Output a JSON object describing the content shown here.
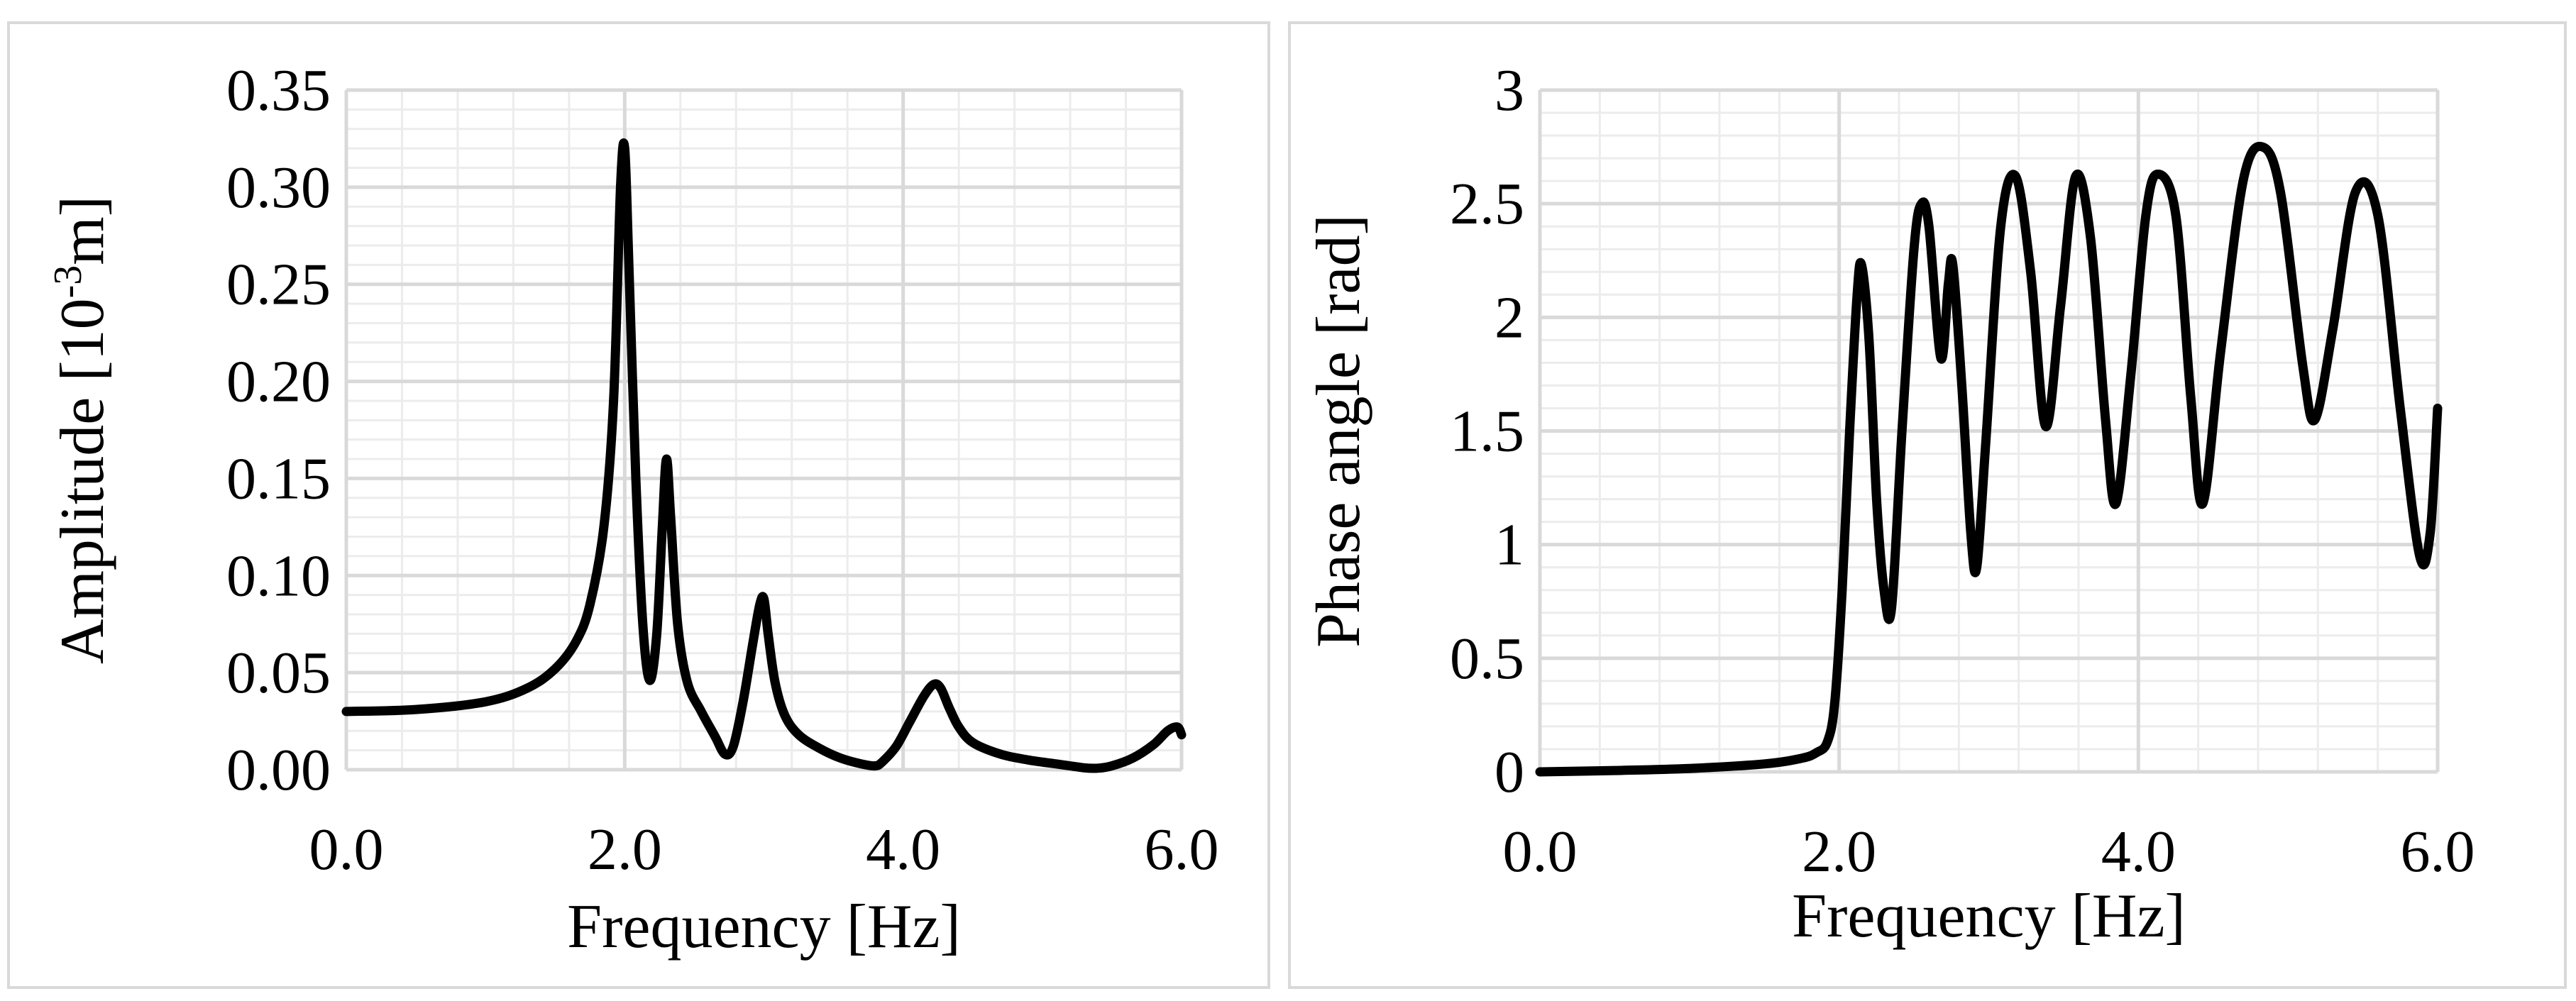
{
  "chart_data": [
    {
      "type": "line",
      "xlabel": "Frequency [Hz]",
      "ylabel": "Amplitude [10",
      "ylabel_sup": "-3",
      "ylabel_end": "m]",
      "xlim": [
        0,
        6
      ],
      "ylim": [
        0,
        0.35
      ],
      "x_ticks": [
        0,
        2,
        4,
        6
      ],
      "x_tick_labels": [
        "0.0",
        "2.0",
        "4.0",
        "6.0"
      ],
      "y_ticks": [
        0,
        0.05,
        0.1,
        0.15,
        0.2,
        0.25,
        0.3,
        0.35
      ],
      "y_tick_labels": [
        "0.00",
        "0.05",
        "0.10",
        "0.15",
        "0.20",
        "0.25",
        "0.30",
        "0.35"
      ],
      "grid": true,
      "line_color": "#000000",
      "grid_color": "#d9d9d9",
      "series": [
        {
          "x": [
            0.0,
            0.5,
            1.0,
            1.3,
            1.5,
            1.65,
            1.75,
            1.85,
            1.92,
            1.97,
            2.0,
            2.03,
            2.08,
            2.13,
            2.18,
            2.23,
            2.27,
            2.3,
            2.33,
            2.38,
            2.45,
            2.55,
            2.65,
            2.72,
            2.78,
            2.85,
            2.92,
            2.97,
            3.0,
            3.03,
            3.08,
            3.15,
            3.25,
            3.4,
            3.55,
            3.7,
            3.8,
            3.85,
            3.95,
            4.05,
            4.15,
            4.22,
            4.27,
            4.33,
            4.4,
            4.5,
            4.7,
            4.9,
            5.1,
            5.3,
            5.4,
            5.5,
            5.65,
            5.8,
            5.9,
            5.97,
            6.0
          ],
          "y": [
            0.03,
            0.031,
            0.035,
            0.042,
            0.052,
            0.066,
            0.085,
            0.125,
            0.19,
            0.3,
            0.32,
            0.26,
            0.15,
            0.075,
            0.046,
            0.07,
            0.125,
            0.16,
            0.13,
            0.075,
            0.045,
            0.03,
            0.017,
            0.008,
            0.012,
            0.035,
            0.065,
            0.085,
            0.088,
            0.07,
            0.045,
            0.028,
            0.018,
            0.011,
            0.006,
            0.003,
            0.002,
            0.004,
            0.012,
            0.025,
            0.038,
            0.044,
            0.042,
            0.032,
            0.022,
            0.014,
            0.008,
            0.005,
            0.003,
            0.001,
            0.0008,
            0.002,
            0.006,
            0.013,
            0.02,
            0.022,
            0.018
          ]
        }
      ]
    },
    {
      "type": "line",
      "xlabel": "Frequency [Hz]",
      "ylabel": "Phase angle [rad]",
      "xlim": [
        0,
        6
      ],
      "ylim": [
        0,
        3
      ],
      "x_ticks": [
        0,
        2,
        4,
        6
      ],
      "x_tick_labels": [
        "0.0",
        "2.0",
        "4.0",
        "6.0"
      ],
      "y_ticks": [
        0,
        0.5,
        1,
        1.5,
        2,
        2.5,
        3
      ],
      "y_tick_labels": [
        "0",
        "0.5",
        "1",
        "1.5",
        "2",
        "2.5",
        "3"
      ],
      "grid": true,
      "line_color": "#000000",
      "grid_color": "#d9d9d9",
      "series": [
        {
          "x": [
            0.0,
            0.5,
            1.0,
            1.5,
            1.75,
            1.85,
            1.92,
            1.97,
            2.02,
            2.07,
            2.12,
            2.15,
            2.2,
            2.25,
            2.3,
            2.35,
            2.42,
            2.5,
            2.55,
            2.6,
            2.68,
            2.73,
            2.76,
            2.82,
            2.88,
            2.92,
            2.98,
            3.08,
            3.18,
            3.28,
            3.38,
            3.48,
            3.58,
            3.68,
            3.78,
            3.85,
            3.95,
            4.05,
            4.13,
            4.25,
            4.35,
            4.43,
            4.55,
            4.7,
            4.83,
            4.95,
            5.1,
            5.18,
            5.3,
            5.45,
            5.6,
            5.75,
            5.88,
            5.95,
            6.0
          ],
          "y": [
            0.0,
            0.006,
            0.015,
            0.035,
            0.06,
            0.085,
            0.13,
            0.3,
            0.8,
            1.5,
            2.1,
            2.23,
            1.9,
            1.2,
            0.8,
            0.72,
            1.5,
            2.3,
            2.5,
            2.4,
            1.82,
            2.15,
            2.23,
            1.7,
            1.05,
            0.9,
            1.45,
            2.4,
            2.62,
            2.2,
            1.52,
            2.05,
            2.62,
            2.35,
            1.55,
            1.18,
            1.75,
            2.45,
            2.63,
            2.45,
            1.65,
            1.18,
            1.85,
            2.6,
            2.75,
            2.55,
            1.78,
            1.55,
            1.95,
            2.55,
            2.45,
            1.6,
            0.95,
            1.05,
            1.6
          ]
        }
      ]
    }
  ]
}
